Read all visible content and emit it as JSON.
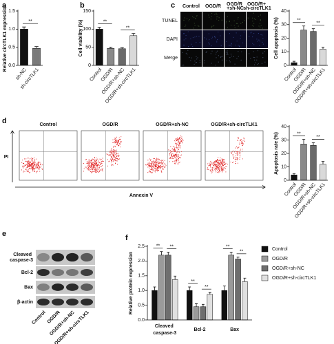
{
  "chart_data": [
    {
      "type": "bar",
      "panel_label": "a",
      "y_label": "Relative circTLK1 expression",
      "categories": [
        "sh-NC",
        "sh-circTLK1"
      ],
      "values": [
        1.0,
        0.47
      ],
      "errors": [
        0.06,
        0.05
      ],
      "colors": [
        "#111111",
        "#7a7a7a"
      ],
      "ylim": [
        0,
        1.5
      ],
      "yticks": [
        {
          "value": 0,
          "label": "0.0"
        },
        {
          "value": 0.5,
          "label": "0.5"
        },
        {
          "value": 1.0,
          "label": "1.0"
        },
        {
          "value": 1.5,
          "label": "1.5"
        }
      ],
      "significance": [
        {
          "label": "**",
          "pair": [
            0,
            1
          ]
        }
      ]
    },
    {
      "type": "bar",
      "panel_label": "b",
      "y_label": "Cell viability (%)",
      "categories": [
        "Control",
        "OGD/R",
        "OGD/R+sh-NC",
        "OGD/R+sh-circTLK1"
      ],
      "values": [
        100,
        47,
        46,
        82
      ],
      "errors": [
        5,
        3,
        3,
        6
      ],
      "colors": [
        "#111111",
        "#8a8a8a",
        "#6a6a6a",
        "#d9d9d9"
      ],
      "ylim": [
        0,
        150
      ],
      "yticks": [
        0,
        50,
        100,
        150
      ],
      "significance": [
        {
          "label": "**",
          "pair": [
            0,
            1
          ]
        },
        {
          "label": "**",
          "pair": [
            2,
            3
          ]
        }
      ]
    },
    {
      "type": "bar",
      "panel_label": "c",
      "y_label": "Cell apoptosis (%)",
      "categories": [
        "Control",
        "OGD/R",
        "OGD/R+sh-NC",
        "OGD/R+sh-circTLK1"
      ],
      "values": [
        2,
        26,
        25,
        12
      ],
      "errors": [
        1,
        3,
        2,
        1.5
      ],
      "colors": [
        "#111111",
        "#8a8a8a",
        "#6a6a6a",
        "#d9d9d9"
      ],
      "ylim": [
        0,
        40
      ],
      "yticks": [
        0,
        10,
        20,
        30,
        40
      ],
      "significance": [
        {
          "label": "**",
          "pair": [
            0,
            1
          ]
        },
        {
          "label": "**",
          "pair": [
            2,
            3
          ]
        }
      ]
    },
    {
      "type": "bar",
      "panel_label": "d",
      "y_label": "Apoptosis rate (%)",
      "categories": [
        "Control",
        "OGD/R",
        "OGD/R+sh-NC",
        "OGD/R+sh-circTLK1"
      ],
      "values": [
        4,
        27,
        26,
        12
      ],
      "errors": [
        1,
        3.5,
        2,
        2
      ],
      "colors": [
        "#111111",
        "#8a8a8a",
        "#6a6a6a",
        "#d9d9d9"
      ],
      "ylim": [
        0,
        40
      ],
      "yticks": [
        0,
        10,
        20,
        30,
        40
      ],
      "significance": [
        {
          "label": "**",
          "pair": [
            0,
            1
          ]
        },
        {
          "label": "**",
          "pair": [
            2,
            3
          ]
        }
      ]
    },
    {
      "type": "bar",
      "panel_label": "f",
      "y_label": "Relative protein expression",
      "categories": [
        "Cleaved caspase-3",
        "Bcl-2",
        "Bax"
      ],
      "series": [
        {
          "name": "Control",
          "color": "#111111",
          "values": [
            1.0,
            1.0,
            1.0
          ],
          "errors": [
            0.12,
            0.12,
            0.15
          ]
        },
        {
          "name": "OGD/R",
          "color": "#9a9a9a",
          "values": [
            2.2,
            0.45,
            2.2
          ],
          "errors": [
            0.12,
            0.1,
            0.1
          ]
        },
        {
          "name": "OGD/R+sh-NC",
          "color": "#6e6e6e",
          "values": [
            2.2,
            0.45,
            2.07
          ],
          "errors": [
            0.1,
            0.08,
            0.06
          ]
        },
        {
          "name": "OGD/R+sh-circTLK1",
          "color": "#e0e0e0",
          "values": [
            1.37,
            0.87,
            1.3
          ],
          "errors": [
            0.12,
            0.06,
            0.12
          ]
        }
      ],
      "ylim": [
        0,
        2.5
      ],
      "yticks": [
        {
          "value": 0,
          "label": "0.0"
        },
        {
          "value": 0.5,
          "label": "0.5"
        },
        {
          "value": 1.0,
          "label": "1.0"
        },
        {
          "value": 1.5,
          "label": "1.5"
        },
        {
          "value": 2.0,
          "label": "2.0"
        },
        {
          "value": 2.5,
          "label": "2.5"
        }
      ],
      "significance": [
        {
          "label": "**",
          "group": 0,
          "pair": [
            0,
            1
          ]
        },
        {
          "label": "**",
          "group": 0,
          "pair": [
            2,
            3
          ]
        },
        {
          "label": "**",
          "group": 1,
          "pair": [
            0,
            1
          ]
        },
        {
          "label": "**",
          "group": 1,
          "pair": [
            2,
            3
          ]
        },
        {
          "label": "**",
          "group": 2,
          "pair": [
            0,
            1
          ]
        },
        {
          "label": "**",
          "group": 2,
          "pair": [
            2,
            3
          ]
        }
      ]
    }
  ],
  "microscopy": {
    "rows": [
      "TUNEL",
      "DAPI",
      "Merge"
    ],
    "columns": [
      "Control",
      "OGD/R",
      "OGD/R +sh-NC",
      "OGD/R+ sh-circTLK1"
    ]
  },
  "flow": {
    "columns": [
      "Control",
      "OGD/R",
      "OGD/R+sh-NC",
      "OGD/R+sh-circTLK1"
    ],
    "x_label": "Annexin V",
    "y_label": "PI"
  },
  "blot": {
    "panel_label": "e",
    "rows": [
      "Cleaved caspase-3",
      "Bcl-2",
      "Bax",
      "β-actin"
    ],
    "columns": [
      "Control",
      "OGD/R",
      "OGD/R+sh-NC",
      "OGD/R+sh-circTLK1"
    ]
  }
}
